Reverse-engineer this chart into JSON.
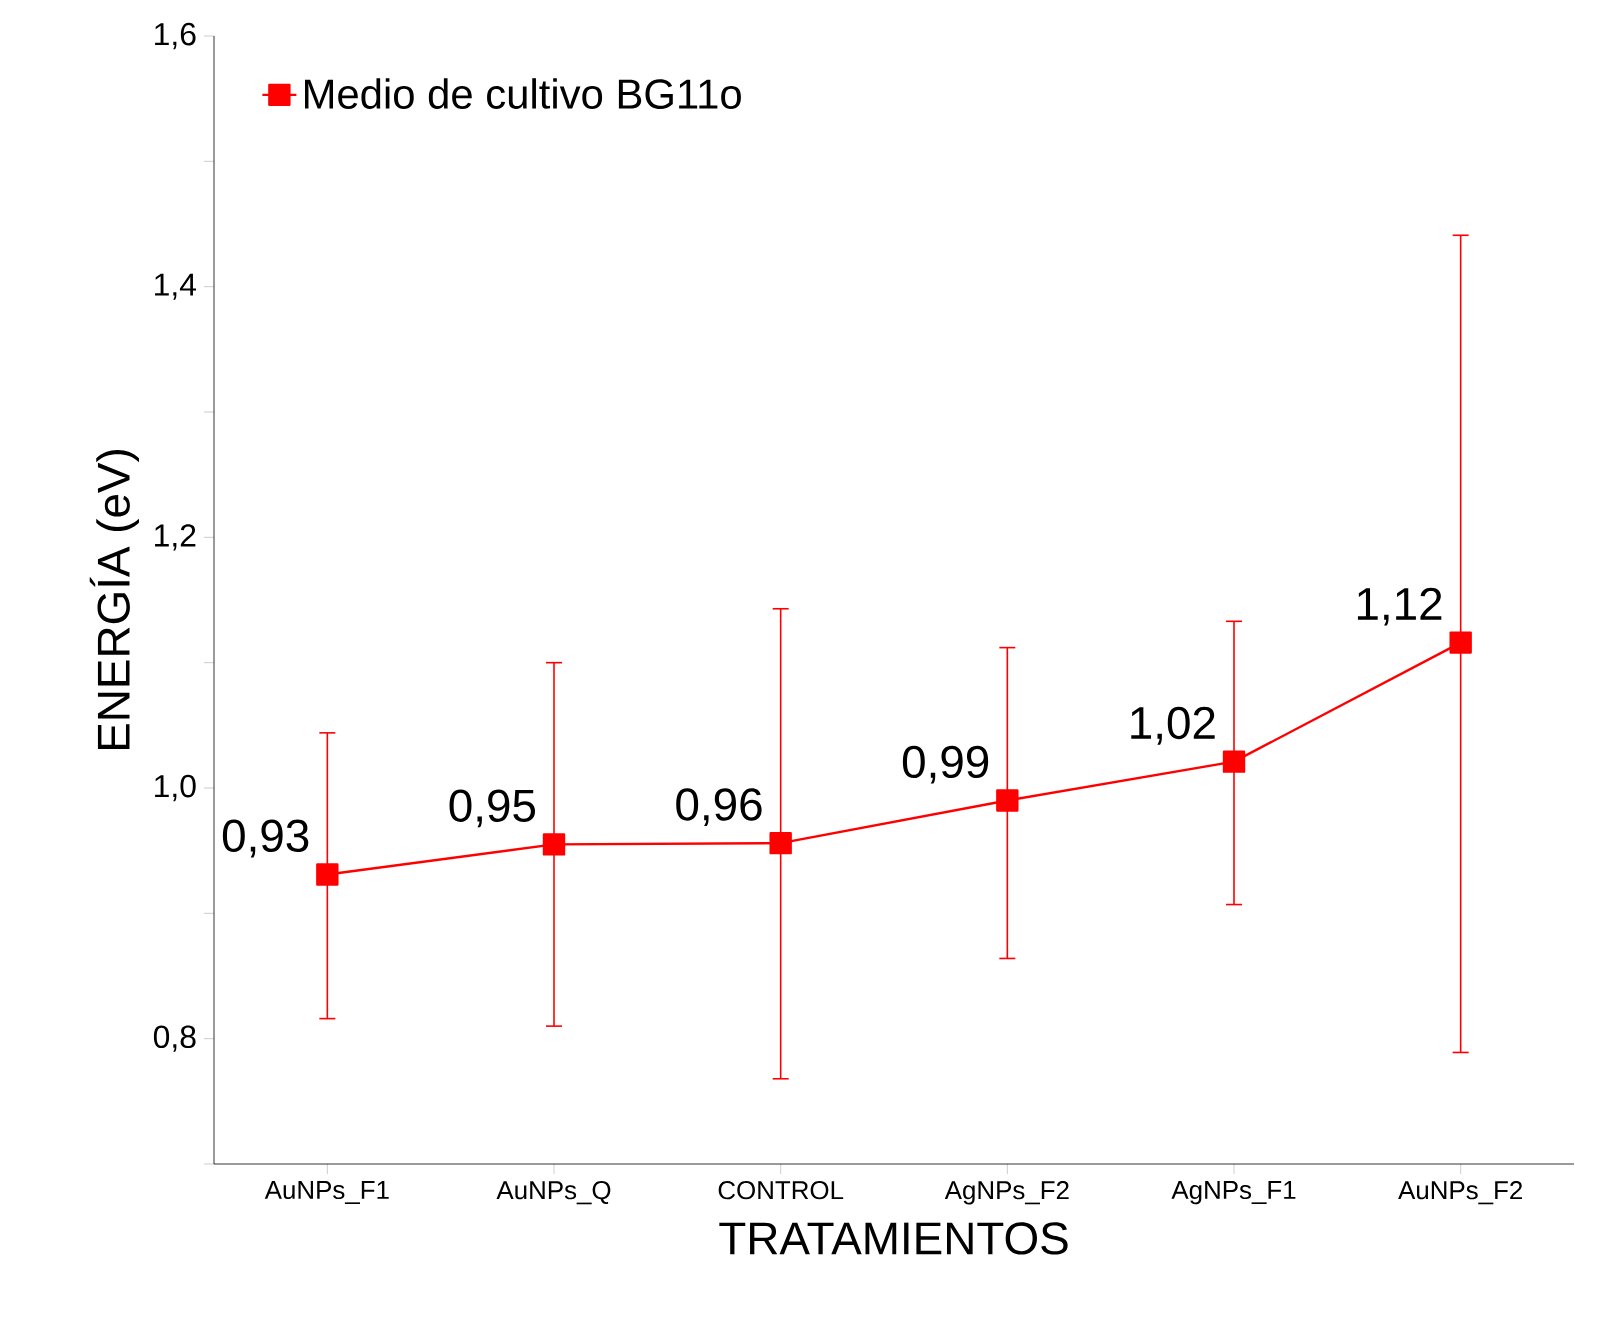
{
  "chart_data": {
    "type": "line",
    "xlabel": "TRATAMIENTOS",
    "ylabel": "ENERGÍA (eV)",
    "categories": [
      "AuNPs_F1",
      "AuNPs_Q",
      "CONTROL",
      "AgNPs_F2",
      "AgNPs_F1",
      "AuNPs_F2"
    ],
    "series": [
      {
        "name": "Medio de cultivo BG11o",
        "color": "#ff0000",
        "values": [
          0.931,
          0.955,
          0.956,
          0.99,
          1.021,
          1.116
        ],
        "errors": [
          [
            0.816,
            1.044
          ],
          [
            0.81,
            1.1
          ],
          [
            0.768,
            1.143
          ],
          [
            0.864,
            1.112
          ],
          [
            0.907,
            1.133
          ],
          [
            0.789,
            1.441
          ]
        ],
        "value_labels": [
          "0,93",
          "0,95",
          "0,96",
          "0,99",
          "1,02",
          "1,12"
        ]
      }
    ],
    "ylim": [
      0.7,
      1.6
    ],
    "yticks": [
      {
        "value": 0.7,
        "label": null
      },
      {
        "value": 0.8,
        "label": "0,8"
      },
      {
        "value": 0.9,
        "label": null
      },
      {
        "value": 1.0,
        "label": "1,0"
      },
      {
        "value": 1.1,
        "label": null
      },
      {
        "value": 1.2,
        "label": "1,2"
      },
      {
        "value": 1.3,
        "label": null
      },
      {
        "value": 1.4,
        "label": "1,4"
      },
      {
        "value": 1.5,
        "label": null
      },
      {
        "value": 1.6,
        "label": "1,6"
      }
    ],
    "marker": "square",
    "line_style": "solid",
    "legend": "top left"
  }
}
